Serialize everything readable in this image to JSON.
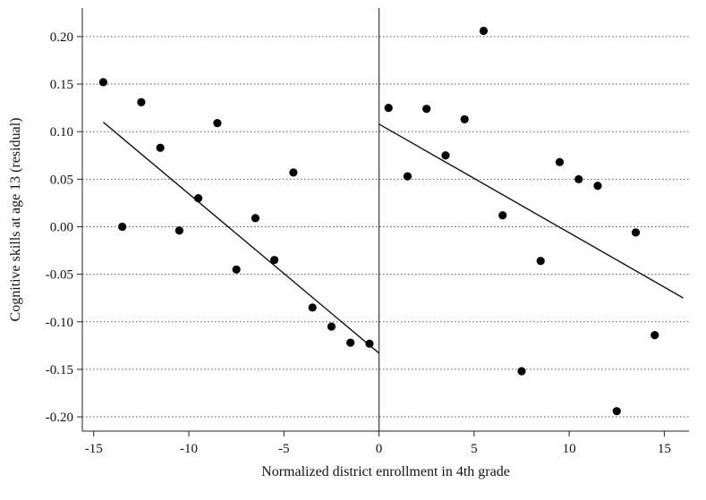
{
  "chart_data": {
    "type": "scatter",
    "title": "",
    "xlabel": "Normalized district enrollment in 4th grade",
    "ylabel": "Cognitive skills at age 13 (residual)",
    "xlim": [
      -15.6,
      16.3
    ],
    "ylim": [
      -0.215,
      0.23
    ],
    "xticks": [
      -15,
      -10,
      -5,
      0,
      5,
      10,
      15
    ],
    "xtick_labels": [
      "-15",
      "-10",
      "-5",
      "0",
      "5",
      "10",
      "15"
    ],
    "yticks": [
      0.2,
      0.15,
      0.1,
      0.05,
      0.0,
      -0.05,
      -0.1,
      -0.15,
      -0.2
    ],
    "ytick_labels": [
      "0.20",
      "0.15",
      "0.10",
      "0.05",
      "0.00",
      "-0.05",
      "-0.10",
      "-0.15",
      "-0.20"
    ],
    "grid": "horizontal dotted",
    "cutoff_x": 0,
    "points": [
      {
        "x": -14.5,
        "y": 0.152
      },
      {
        "x": -13.5,
        "y": 0.0
      },
      {
        "x": -12.5,
        "y": 0.131
      },
      {
        "x": -11.5,
        "y": 0.083
      },
      {
        "x": -10.5,
        "y": -0.004
      },
      {
        "x": -9.5,
        "y": 0.03
      },
      {
        "x": -8.5,
        "y": 0.109
      },
      {
        "x": -7.5,
        "y": -0.045
      },
      {
        "x": -6.5,
        "y": 0.009
      },
      {
        "x": -5.5,
        "y": -0.035
      },
      {
        "x": -4.5,
        "y": 0.057
      },
      {
        "x": -3.5,
        "y": -0.085
      },
      {
        "x": -2.5,
        "y": -0.105
      },
      {
        "x": -1.5,
        "y": -0.122
      },
      {
        "x": -0.5,
        "y": -0.123
      },
      {
        "x": 0.5,
        "y": 0.125
      },
      {
        "x": 1.5,
        "y": 0.053
      },
      {
        "x": 2.5,
        "y": 0.124
      },
      {
        "x": 3.5,
        "y": 0.075
      },
      {
        "x": 4.5,
        "y": 0.113
      },
      {
        "x": 5.5,
        "y": 0.206
      },
      {
        "x": 6.5,
        "y": 0.012
      },
      {
        "x": 7.5,
        "y": -0.152
      },
      {
        "x": 8.5,
        "y": -0.036
      },
      {
        "x": 9.5,
        "y": 0.068
      },
      {
        "x": 10.5,
        "y": 0.05
      },
      {
        "x": 11.5,
        "y": 0.043
      },
      {
        "x": 12.5,
        "y": -0.194
      },
      {
        "x": 13.5,
        "y": -0.006
      },
      {
        "x": 14.5,
        "y": -0.114
      }
    ],
    "fit_lines": [
      {
        "x": [
          -14.5,
          0
        ],
        "y": [
          0.11,
          -0.133
        ]
      },
      {
        "x": [
          0,
          16
        ],
        "y": [
          0.108,
          -0.075
        ]
      }
    ]
  }
}
